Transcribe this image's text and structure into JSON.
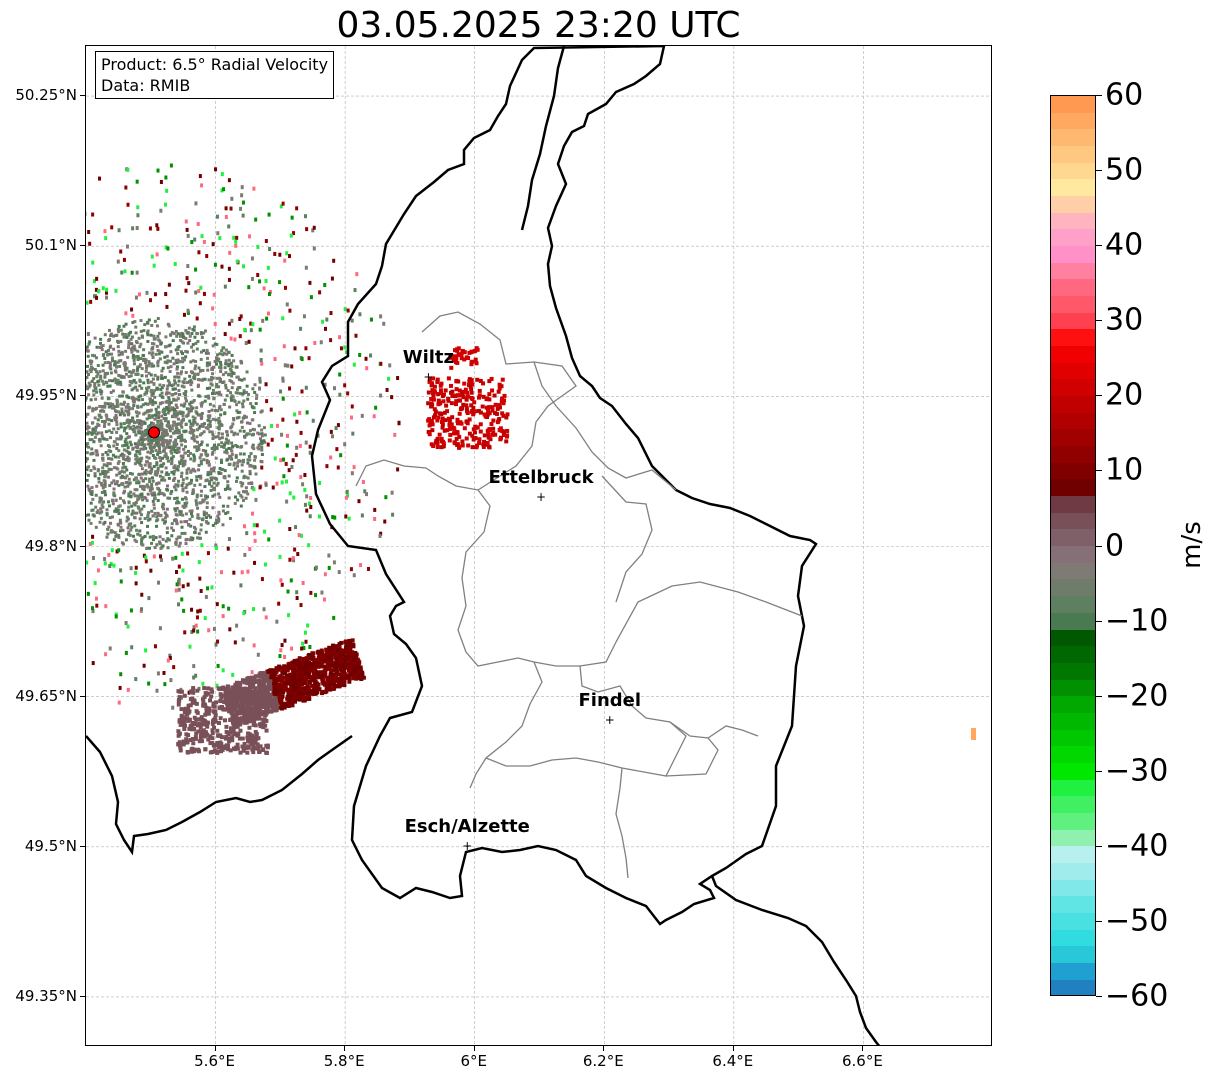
{
  "title": "03.05.2025 23:20 UTC",
  "info_box": {
    "product": "Product: 6.5° Radial Velocity",
    "data": "Data: RMIB"
  },
  "map": {
    "extent": {
      "lon_min": 5.4,
      "lon_max": 6.8,
      "lat_min": 49.3,
      "lat_max": 50.3
    },
    "gridlines": true,
    "lat_ticks": [
      {
        "value": 50.25,
        "label": "50.25°N"
      },
      {
        "value": 50.1,
        "label": "50.1°N"
      },
      {
        "value": 49.95,
        "label": "49.95°N"
      },
      {
        "value": 49.8,
        "label": "49.8°N"
      },
      {
        "value": 49.65,
        "label": "49.65°N"
      },
      {
        "value": 49.5,
        "label": "49.5°N"
      },
      {
        "value": 49.35,
        "label": "49.35°N"
      }
    ],
    "lon_ticks": [
      {
        "value": 5.6,
        "label": "5.6°E"
      },
      {
        "value": 5.8,
        "label": "5.8°E"
      },
      {
        "value": 6.0,
        "label": "6°E"
      },
      {
        "value": 6.2,
        "label": "6.2°E"
      },
      {
        "value": 6.4,
        "label": "6.4°E"
      },
      {
        "value": 6.6,
        "label": "6.6°E"
      }
    ],
    "radar_site": {
      "lon": 5.505,
      "lat": 49.914,
      "color": "#ff0000"
    },
    "cities": [
      {
        "name": "Wiltz",
        "lon": 5.93,
        "lat": 49.968
      },
      {
        "name": "Ettelbruck",
        "lon": 6.104,
        "lat": 49.848
      },
      {
        "name": "Findel",
        "lon": 6.21,
        "lat": 49.626
      },
      {
        "name": "Esch/Alzette",
        "lon": 5.99,
        "lat": 49.5
      }
    ]
  },
  "colorbar": {
    "unit": "m/s",
    "vmin": -60,
    "vmax": 60,
    "ticks": [
      {
        "value": 60,
        "label": "60"
      },
      {
        "value": 50,
        "label": "50"
      },
      {
        "value": 40,
        "label": "40"
      },
      {
        "value": 30,
        "label": "30"
      },
      {
        "value": 20,
        "label": "20"
      },
      {
        "value": 10,
        "label": "10"
      },
      {
        "value": 0,
        "label": "0"
      },
      {
        "value": -10,
        "label": "−10"
      },
      {
        "value": -20,
        "label": "−20"
      },
      {
        "value": -30,
        "label": "−30"
      },
      {
        "value": -40,
        "label": "−40"
      },
      {
        "value": -50,
        "label": "−50"
      },
      {
        "value": -60,
        "label": "−60"
      }
    ],
    "colors": [
      "#2080c0",
      "#20a0d0",
      "#28c8d8",
      "#30dce0",
      "#48e0e0",
      "#60e4e4",
      "#80e8e8",
      "#a0ecec",
      "#b8f0f0",
      "#90f0b0",
      "#60f080",
      "#40f060",
      "#20f040",
      "#00e800",
      "#00d800",
      "#00c800",
      "#00b800",
      "#00a800",
      "#009000",
      "#007800",
      "#006800",
      "#005800",
      "#4a7a50",
      "#5e8060",
      "#707c6a",
      "#7e7a74",
      "#857078",
      "#806068",
      "#7a5058",
      "#703a44",
      "#700000",
      "#800000",
      "#900000",
      "#a00000",
      "#b00000",
      "#c00000",
      "#d00000",
      "#e00000",
      "#f00000",
      "#ff1010",
      "#ff4050",
      "#ff5868",
      "#ff6880",
      "#ff80a0",
      "#ff90c8",
      "#ffa0c8",
      "#ffb4c0",
      "#ffd0a8",
      "#ffe8a0",
      "#ffd890",
      "#ffc880",
      "#ffb870",
      "#ffa860",
      "#ff9850"
    ]
  }
}
